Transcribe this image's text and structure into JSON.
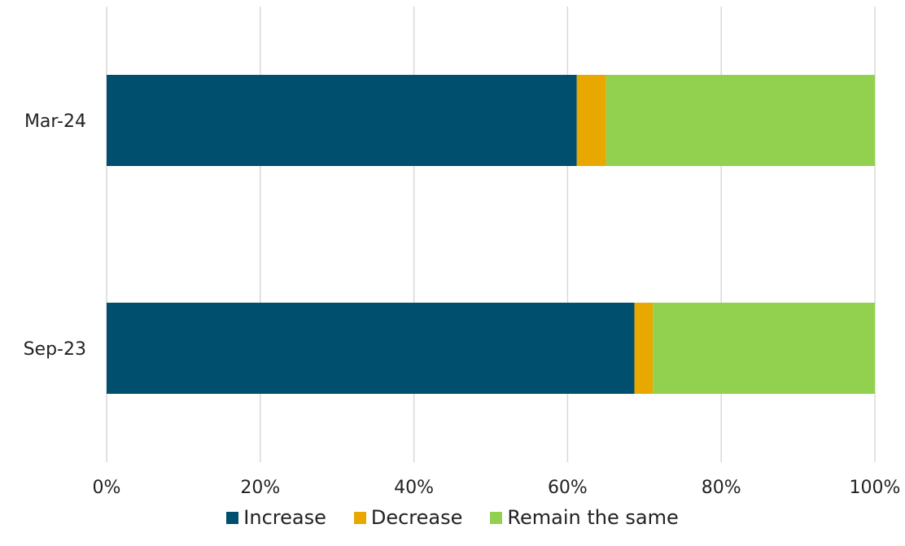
{
  "chart_data": {
    "type": "bar",
    "orientation": "horizontal",
    "stacked": "percent",
    "categories": [
      "Mar-24",
      "Sep-23"
    ],
    "series": [
      {
        "name": "Increase",
        "color": "#004f6e",
        "values": [
          61.2,
          68.7
        ]
      },
      {
        "name": "Decrease",
        "color": "#e8a800",
        "values": [
          3.8,
          2.4
        ]
      },
      {
        "name": "Remain the same",
        "color": "#92d050",
        "values": [
          35.0,
          28.9
        ]
      }
    ],
    "x_ticks": [
      "0%",
      "20%",
      "40%",
      "60%",
      "80%",
      "100%"
    ],
    "xlim": [
      0,
      100
    ],
    "grid": "vertical",
    "legend_position": "bottom"
  }
}
